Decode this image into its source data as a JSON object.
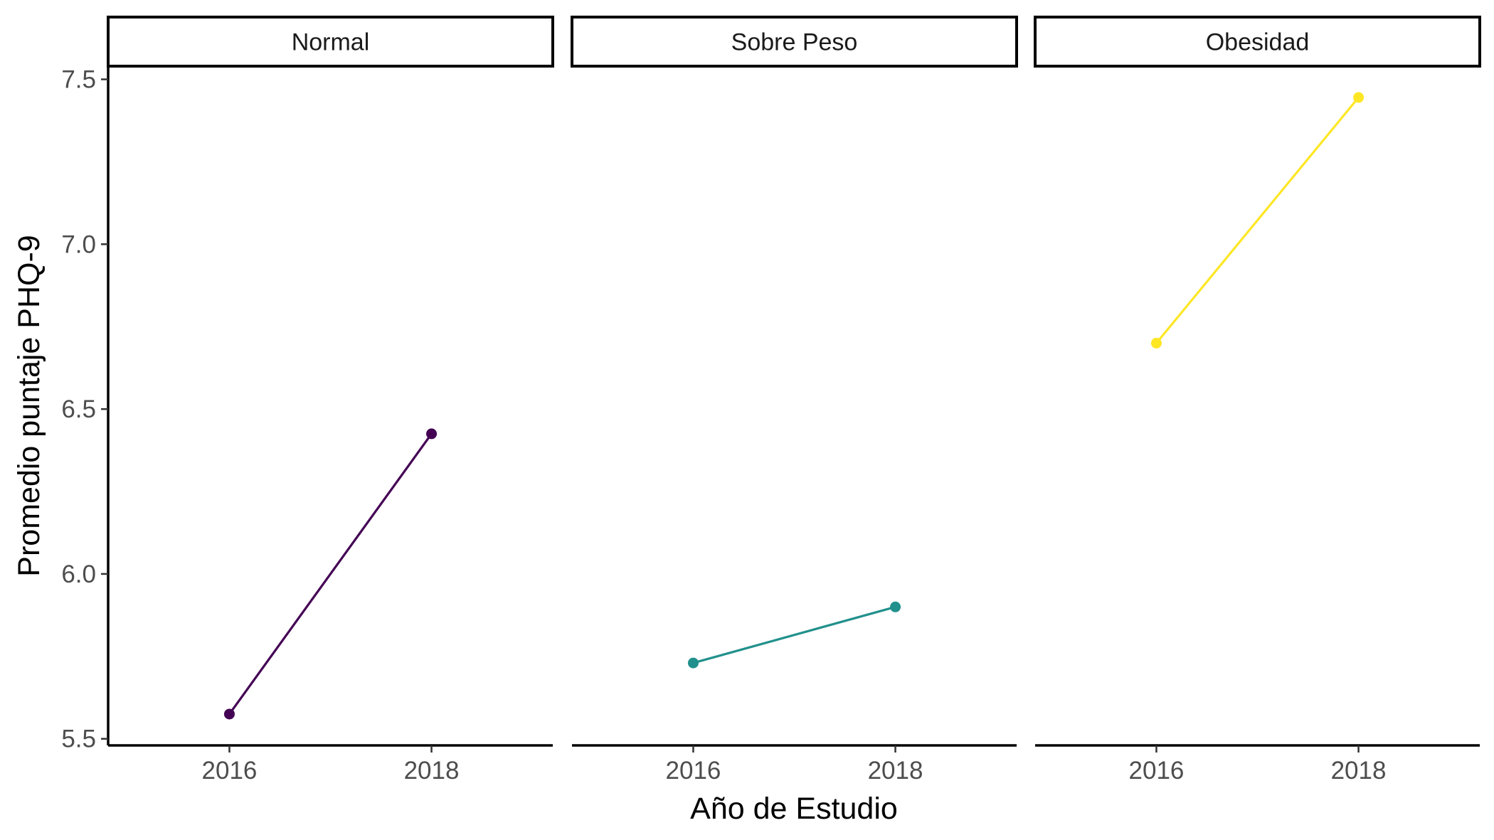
{
  "chart_data": {
    "type": "line",
    "xlabel": "Año de Estudio",
    "ylabel": "Promedio puntaje PHQ-9",
    "xlim": [
      2014.8,
      2019.2
    ],
    "ylim": [
      5.48,
      7.54
    ],
    "x_ticks": [
      2016,
      2018
    ],
    "y_ticks": [
      5.5,
      6.0,
      6.5,
      7.0,
      7.5
    ],
    "y_tick_labels": [
      "5.5",
      "6.0",
      "6.5",
      "7.0",
      "7.5"
    ],
    "grid": false,
    "legend": "none",
    "panels": [
      {
        "strip": "Normal",
        "color": "#440154",
        "x": [
          2016,
          2018
        ],
        "y": [
          5.575,
          6.425
        ]
      },
      {
        "strip": "Sobre Peso",
        "color": "#21908C",
        "x": [
          2016,
          2018
        ],
        "y": [
          5.73,
          5.9
        ]
      },
      {
        "strip": "Obesidad",
        "color": "#FDE725",
        "x": [
          2016,
          2018
        ],
        "y": [
          6.7,
          7.445
        ]
      }
    ]
  }
}
